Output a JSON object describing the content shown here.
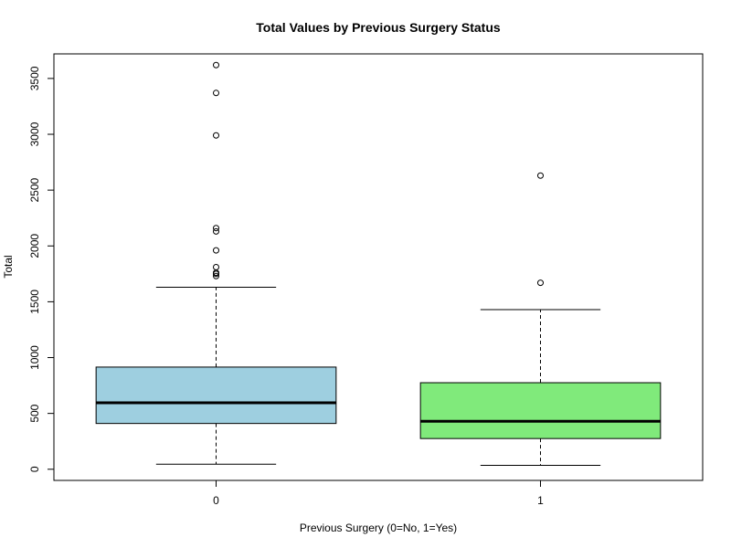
{
  "chart_data": {
    "type": "box",
    "title": "Total Values by Previous Surgery Status",
    "xlabel": "Previous Surgery (0=No, 1=Yes)",
    "ylabel": "Total",
    "categories": [
      "0",
      "1"
    ],
    "ylim": [
      -100,
      3720
    ],
    "yticks": [
      0,
      500,
      1000,
      1500,
      2000,
      2500,
      3000,
      3500
    ],
    "grid": false,
    "boxes": [
      {
        "name": "0",
        "color": "#9ecfe0",
        "whisker_low": 45,
        "q1": 410,
        "median": 595,
        "q3": 915,
        "whisker_high": 1630,
        "outliers": [
          1730,
          1750,
          1760,
          1810,
          1960,
          2130,
          2160,
          2990,
          3370,
          3620
        ]
      },
      {
        "name": "1",
        "color": "#80ea7b",
        "whisker_low": 35,
        "q1": 275,
        "median": 430,
        "q3": 775,
        "whisker_high": 1430,
        "outliers": [
          1670,
          2630
        ]
      }
    ]
  }
}
